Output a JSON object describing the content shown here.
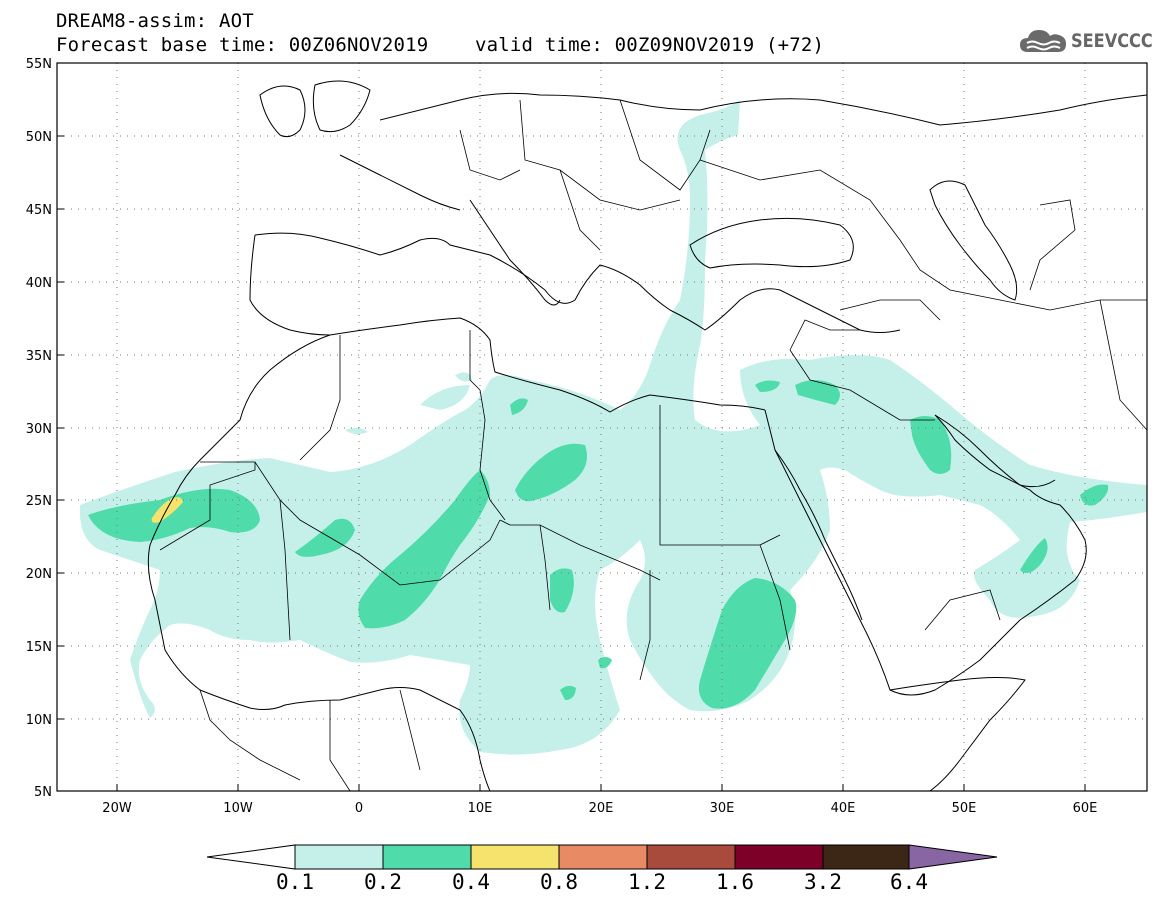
{
  "title": {
    "line1": "DREAM8-assim: AOT",
    "line2": "Forecast base time: 00Z06NOV2019    valid time: 00Z09NOV2019 (+72)"
  },
  "logo": {
    "text": "SEEVCCC",
    "icon": "cloud-icon"
  },
  "map": {
    "projection": "lat-lon",
    "lon_range": [
      -25,
      65
    ],
    "lat_range": [
      5,
      55
    ],
    "lat_labels": [
      "55N",
      "50N",
      "45N",
      "40N",
      "35N",
      "30N",
      "25N",
      "20N",
      "15N",
      "10N",
      "5N"
    ],
    "lon_labels": [
      "20W",
      "10W",
      "0",
      "10E",
      "20E",
      "30E",
      "40E",
      "50E",
      "60E"
    ],
    "grid": "dotted"
  },
  "legend": {
    "levels": [
      "0.1",
      "0.2",
      "0.4",
      "0.8",
      "1.2",
      "1.6",
      "3.2",
      "6.4"
    ],
    "colors": [
      "#ffffff",
      "#c5f0ea",
      "#4fdcaa",
      "#f5e36e",
      "#e88a64",
      "#a84b3c",
      "#7d0028",
      "#3c2615",
      "#8866a3"
    ]
  }
}
